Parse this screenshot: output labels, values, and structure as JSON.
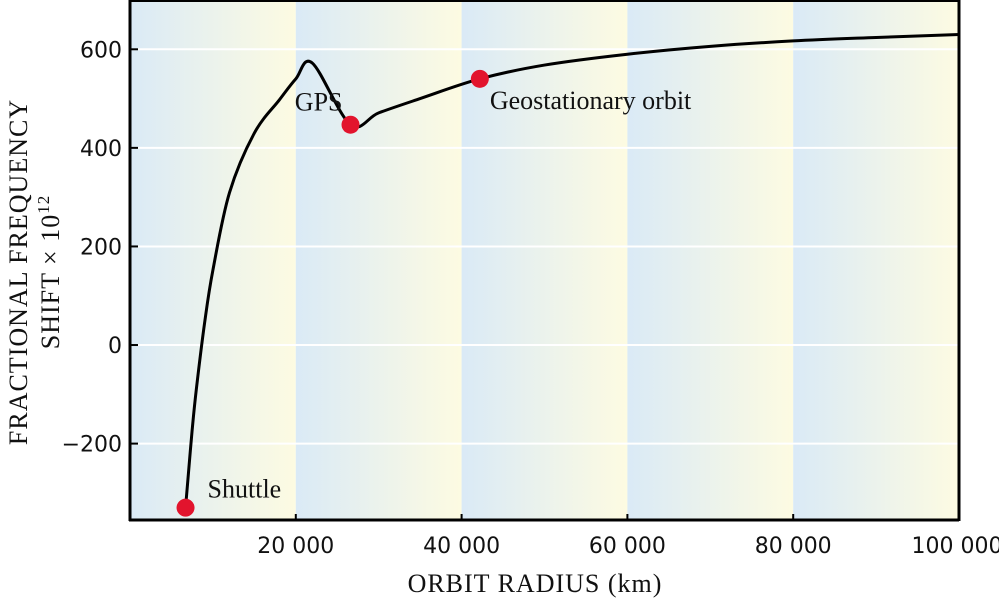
{
  "chart_data": {
    "type": "line",
    "xlabel": "ORBIT RADIUS (km)",
    "ylabel_line1": "FRACTIONAL  FREQUENCY",
    "ylabel_line2": "SHIFT × 10",
    "ylabel_exponent": "12",
    "xlim": [
      0,
      100000
    ],
    "ylim": [
      -355,
      700
    ],
    "x_ticks": [
      {
        "value": 20000,
        "label": "20 000"
      },
      {
        "value": 40000,
        "label": "40 000"
      },
      {
        "value": 60000,
        "label": "60 000"
      },
      {
        "value": 80000,
        "label": "80 000"
      },
      {
        "value": 100000,
        "label": "100 000"
      }
    ],
    "y_ticks": [
      {
        "value": -200,
        "label": "−200"
      },
      {
        "value": 0,
        "label": "0"
      },
      {
        "value": 200,
        "label": "200"
      },
      {
        "value": 400,
        "label": "400"
      },
      {
        "value": 600,
        "label": "600"
      }
    ],
    "grid": "horizontal",
    "series": [
      {
        "color": "#000000",
        "x": [
          6700,
          7000,
          7500,
          8000,
          9000,
          10000,
          12000,
          15000,
          18000,
          20000,
          22000,
          26600,
          30000,
          35000,
          42200,
          50000,
          60000,
          70000,
          80000,
          90000,
          100000
        ],
        "y": [
          -330,
          -270,
          -172,
          -90,
          45,
          152,
          309,
          430,
          497,
          540,
          572,
          447,
          471,
          500,
          540,
          568,
          590,
          606,
          617,
          624,
          630
        ]
      }
    ],
    "points": [
      {
        "label": "Shuttle",
        "x": 6700,
        "y": -330
      },
      {
        "label": "GPS",
        "x": 26600,
        "y": 447
      },
      {
        "label": "Geostationary orbit",
        "x": 42200,
        "y": 540
      }
    ],
    "bands": [
      {
        "x0": 0,
        "x1": 20000
      },
      {
        "x0": 20000,
        "x1": 40000
      },
      {
        "x0": 40000,
        "x1": 60000
      },
      {
        "x0": 60000,
        "x1": 80000
      },
      {
        "x0": 80000,
        "x1": 100000
      }
    ],
    "colors": {
      "band_start": "#daeaf6",
      "band_end": "#fdfbe2",
      "point": "#e2142d",
      "line": "#000000",
      "grid": "#ffffff"
    }
  }
}
